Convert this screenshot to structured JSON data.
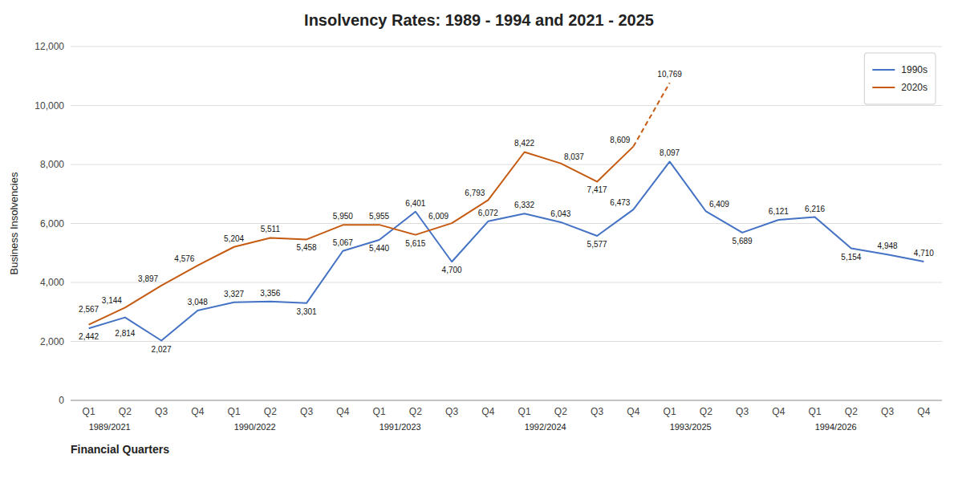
{
  "chart_data": {
    "type": "line",
    "title": "Insolvency Rates: 1989 - 1994 and 2021 - 2025",
    "ylabel": "Business Insolvencies",
    "xlabel": "Financial Quarters",
    "categories": [
      "Q1",
      "Q2",
      "Q3",
      "Q4",
      "Q1",
      "Q2",
      "Q3",
      "Q4",
      "Q1",
      "Q2",
      "Q3",
      "Q4",
      "Q1",
      "Q2",
      "Q3",
      "Q4",
      "Q1",
      "Q2",
      "Q3",
      "Q4",
      "Q1",
      "Q2",
      "Q3",
      "Q4"
    ],
    "series": [
      {
        "name": "1990s",
        "color": "#4472C4",
        "line_style": "solid",
        "values": [
          2442,
          2814,
          2027,
          3048,
          3327,
          3356,
          3301,
          5067,
          5440,
          6401,
          4700,
          6072,
          6332,
          6043,
          5577,
          6473,
          8097,
          6409,
          5689,
          6121,
          6216,
          5154,
          4948,
          4710
        ],
        "value_labels": [
          "2,442",
          "2,814",
          "2,027",
          "3,048",
          "3,327",
          "3,356",
          "3,301",
          "5,067",
          "5,440",
          "6,401",
          "4,700",
          "6,072",
          "6,332",
          "6,043",
          "5,577",
          "6,473",
          "8,097",
          "6,409",
          "5,689",
          "6,121",
          "6,216",
          "5,154",
          "4,948",
          "4,710"
        ]
      },
      {
        "name": "2020s",
        "color": "#C55A11",
        "line_style": "solid",
        "values": [
          2567,
          3144,
          3897,
          4576,
          5204,
          5511,
          5458,
          5950,
          5955,
          5615,
          6009,
          6793,
          8422,
          8037,
          7417,
          8609,
          null,
          null,
          null,
          null,
          null,
          null,
          null,
          null
        ],
        "value_labels": [
          "2,567",
          "3,144",
          "3,897",
          "4,576",
          "5,204",
          "5,511",
          "5,458",
          "5,950",
          "5,955",
          "5,615",
          "6,009",
          "6,793",
          "8,422",
          "8,037",
          "7,417",
          "8,609",
          null,
          null,
          null,
          null,
          null,
          null,
          null,
          null
        ]
      },
      {
        "name": "2020s",
        "color": "#C55A11",
        "line_style": "dashed",
        "values": [
          null,
          null,
          null,
          null,
          null,
          null,
          null,
          null,
          null,
          null,
          null,
          null,
          null,
          null,
          null,
          8609,
          10769,
          null,
          null,
          null,
          null,
          null,
          null,
          null
        ],
        "value_labels": [
          null,
          null,
          null,
          null,
          null,
          null,
          null,
          null,
          null,
          null,
          null,
          null,
          null,
          null,
          null,
          null,
          "10,769",
          null,
          null,
          null,
          null,
          null,
          null,
          null
        ]
      }
    ],
    "annotations": [
      {
        "text": "1989/2021",
        "x": 0
      },
      {
        "text": "1990/2022",
        "x": 4
      },
      {
        "text": "1991/2023",
        "x": 8
      },
      {
        "text": "1992/2024",
        "x": 12
      },
      {
        "text": "1993/2025",
        "x": 16
      },
      {
        "text": "1994/2026",
        "x": 20
      }
    ],
    "ylim": [
      0,
      12000
    ],
    "yticks": [
      0,
      {
        "value": 2000,
        "label": "2,000"
      },
      {
        "value": 4000,
        "label": "4,000"
      },
      {
        "value": 6000,
        "label": "6,000"
      },
      {
        "value": 8000,
        "label": "8,000"
      },
      {
        "value": 10000,
        "label": "10,000"
      },
      {
        "value": 12000,
        "label": "12,000"
      }
    ],
    "grid": true,
    "legend": "upper right",
    "data_labels": true
  }
}
